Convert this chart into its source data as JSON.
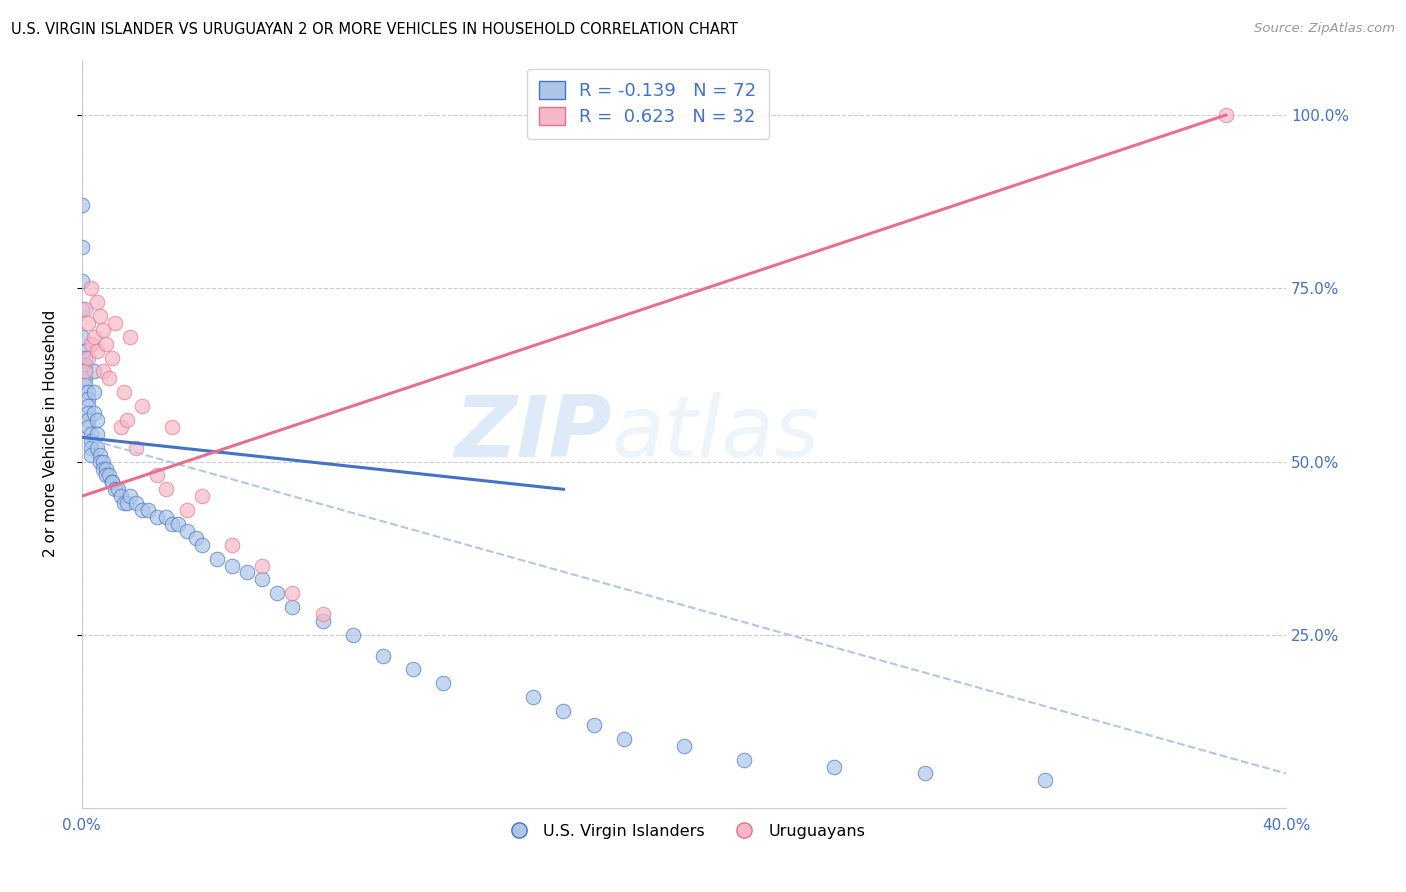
{
  "title": "U.S. VIRGIN ISLANDER VS URUGUAYAN 2 OR MORE VEHICLES IN HOUSEHOLD CORRELATION CHART",
  "source": "Source: ZipAtlas.com",
  "ylabel": "2 or more Vehicles in Household",
  "watermark_zip": "ZIP",
  "watermark_atlas": "atlas",
  "blue_R": -0.139,
  "blue_N": 72,
  "pink_R": 0.623,
  "pink_N": 32,
  "blue_color": "#adc6e8",
  "pink_color": "#f5b8c8",
  "blue_line_color": "#4472c4",
  "pink_line_color": "#e8708a",
  "dashed_line_color": "#b0c8e8",
  "blue_scatter_x": [
    0.0,
    0.0,
    0.0,
    0.0,
    0.0,
    0.001,
    0.001,
    0.001,
    0.001,
    0.001,
    0.001,
    0.002,
    0.002,
    0.002,
    0.002,
    0.002,
    0.002,
    0.003,
    0.003,
    0.003,
    0.003,
    0.004,
    0.004,
    0.004,
    0.005,
    0.005,
    0.005,
    0.006,
    0.006,
    0.007,
    0.007,
    0.008,
    0.008,
    0.009,
    0.01,
    0.01,
    0.011,
    0.012,
    0.013,
    0.014,
    0.015,
    0.016,
    0.018,
    0.02,
    0.022,
    0.025,
    0.028,
    0.03,
    0.032,
    0.035,
    0.038,
    0.04,
    0.045,
    0.05,
    0.055,
    0.06,
    0.065,
    0.07,
    0.08,
    0.09,
    0.1,
    0.11,
    0.12,
    0.15,
    0.16,
    0.17,
    0.18,
    0.2,
    0.22,
    0.25,
    0.28,
    0.32
  ],
  "blue_scatter_y": [
    0.87,
    0.81,
    0.76,
    0.72,
    0.68,
    0.66,
    0.65,
    0.64,
    0.63,
    0.62,
    0.61,
    0.6,
    0.59,
    0.58,
    0.57,
    0.56,
    0.55,
    0.54,
    0.53,
    0.52,
    0.51,
    0.63,
    0.6,
    0.57,
    0.56,
    0.54,
    0.52,
    0.51,
    0.5,
    0.5,
    0.49,
    0.49,
    0.48,
    0.48,
    0.47,
    0.47,
    0.46,
    0.46,
    0.45,
    0.44,
    0.44,
    0.45,
    0.44,
    0.43,
    0.43,
    0.42,
    0.42,
    0.41,
    0.41,
    0.4,
    0.39,
    0.38,
    0.36,
    0.35,
    0.34,
    0.33,
    0.31,
    0.29,
    0.27,
    0.25,
    0.22,
    0.2,
    0.18,
    0.16,
    0.14,
    0.12,
    0.1,
    0.09,
    0.07,
    0.06,
    0.05,
    0.04
  ],
  "pink_scatter_x": [
    0.001,
    0.001,
    0.002,
    0.002,
    0.003,
    0.003,
    0.004,
    0.005,
    0.005,
    0.006,
    0.007,
    0.007,
    0.008,
    0.009,
    0.01,
    0.011,
    0.013,
    0.014,
    0.015,
    0.016,
    0.018,
    0.02,
    0.025,
    0.028,
    0.03,
    0.035,
    0.04,
    0.05,
    0.06,
    0.07,
    0.08,
    0.38
  ],
  "pink_scatter_y": [
    0.63,
    0.72,
    0.65,
    0.7,
    0.67,
    0.75,
    0.68,
    0.73,
    0.66,
    0.71,
    0.69,
    0.63,
    0.67,
    0.62,
    0.65,
    0.7,
    0.55,
    0.6,
    0.56,
    0.68,
    0.52,
    0.58,
    0.48,
    0.46,
    0.55,
    0.43,
    0.45,
    0.38,
    0.35,
    0.31,
    0.28,
    1.0
  ],
  "blue_line_x0": 0.0,
  "blue_line_x1": 0.16,
  "blue_line_y0": 0.535,
  "blue_line_y1": 0.46,
  "dashed_line_x0": 0.0,
  "dashed_line_x1": 0.4,
  "dashed_line_y0": 0.535,
  "dashed_line_y1": 0.05,
  "pink_line_x0": 0.0,
  "pink_line_x1": 0.38,
  "pink_line_y0": 0.45,
  "pink_line_y1": 1.0,
  "xlim": [
    0.0,
    0.4
  ],
  "ylim": [
    0.0,
    1.08
  ],
  "ygrid_ticks": [
    0.25,
    0.5,
    0.75,
    1.0
  ],
  "xgrid_ticks": [
    0.0,
    0.1,
    0.2,
    0.3,
    0.4
  ]
}
